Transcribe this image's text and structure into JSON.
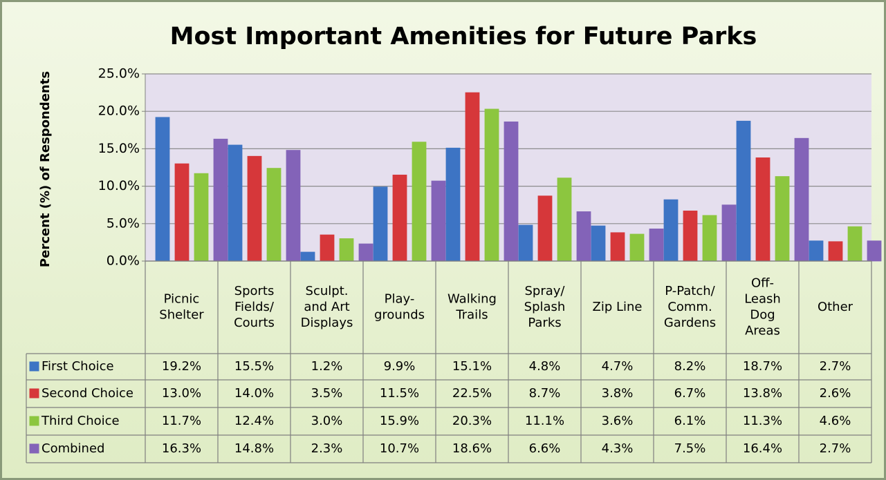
{
  "chart_data": {
    "type": "bar",
    "title": "Most Important Amenities for Future Parks",
    "y_label": "Percent (%) of Respondents",
    "categories": [
      "Picnic\nShelter",
      "Sports\nFields/\nCourts",
      "Sculpt.\nand Art\nDisplays",
      "Play-\ngrounds",
      "Walking\nTrails",
      "Spray/\nSplash\nParks",
      "Zip Line",
      "P-Patch/\nComm.\nGardens",
      "Off-\nLeash\nDog\nAreas",
      "Other"
    ],
    "series": [
      {
        "name": "First Choice",
        "color": "#3d74c4",
        "values": [
          19.2,
          15.5,
          1.2,
          9.9,
          15.1,
          4.8,
          4.7,
          8.2,
          18.7,
          2.7
        ],
        "value_labels": [
          "19.2%",
          "15.5%",
          "1.2%",
          "9.9%",
          "15.1%",
          "4.8%",
          "4.7%",
          "8.2%",
          "18.7%",
          "2.7%"
        ]
      },
      {
        "name": "Second Choice",
        "color": "#d6373a",
        "values": [
          13.0,
          14.0,
          3.5,
          11.5,
          22.5,
          8.7,
          3.8,
          6.7,
          13.8,
          2.6
        ],
        "value_labels": [
          "13.0%",
          "14.0%",
          "3.5%",
          "11.5%",
          "22.5%",
          "8.7%",
          "3.8%",
          "6.7%",
          "13.8%",
          "2.6%"
        ]
      },
      {
        "name": "Third Choice",
        "color": "#8cc63f",
        "values": [
          11.7,
          12.4,
          3.0,
          15.9,
          20.3,
          11.1,
          3.6,
          6.1,
          11.3,
          4.6
        ],
        "value_labels": [
          "11.7%",
          "12.4%",
          "3.0%",
          "15.9%",
          "20.3%",
          "11.1%",
          "3.6%",
          "6.1%",
          "11.3%",
          "4.6%"
        ]
      },
      {
        "name": "Combined",
        "color": "#8363b8",
        "values": [
          16.3,
          14.8,
          2.3,
          10.7,
          18.6,
          6.6,
          4.3,
          7.5,
          16.4,
          2.7
        ],
        "value_labels": [
          "16.3%",
          "14.8%",
          "2.3%",
          "10.7%",
          "18.6%",
          "6.6%",
          "4.3%",
          "7.5%",
          "16.4%",
          "2.7%"
        ]
      }
    ],
    "ylim": [
      0,
      25
    ],
    "yticks": [
      {
        "value": 0,
        "label": "0.0%"
      },
      {
        "value": 5,
        "label": "5.0%"
      },
      {
        "value": 10,
        "label": "10.0%"
      },
      {
        "value": 15,
        "label": "15.0%"
      },
      {
        "value": 20,
        "label": "20.0%"
      },
      {
        "value": 25,
        "label": "25.0%"
      }
    ],
    "grid": true
  }
}
